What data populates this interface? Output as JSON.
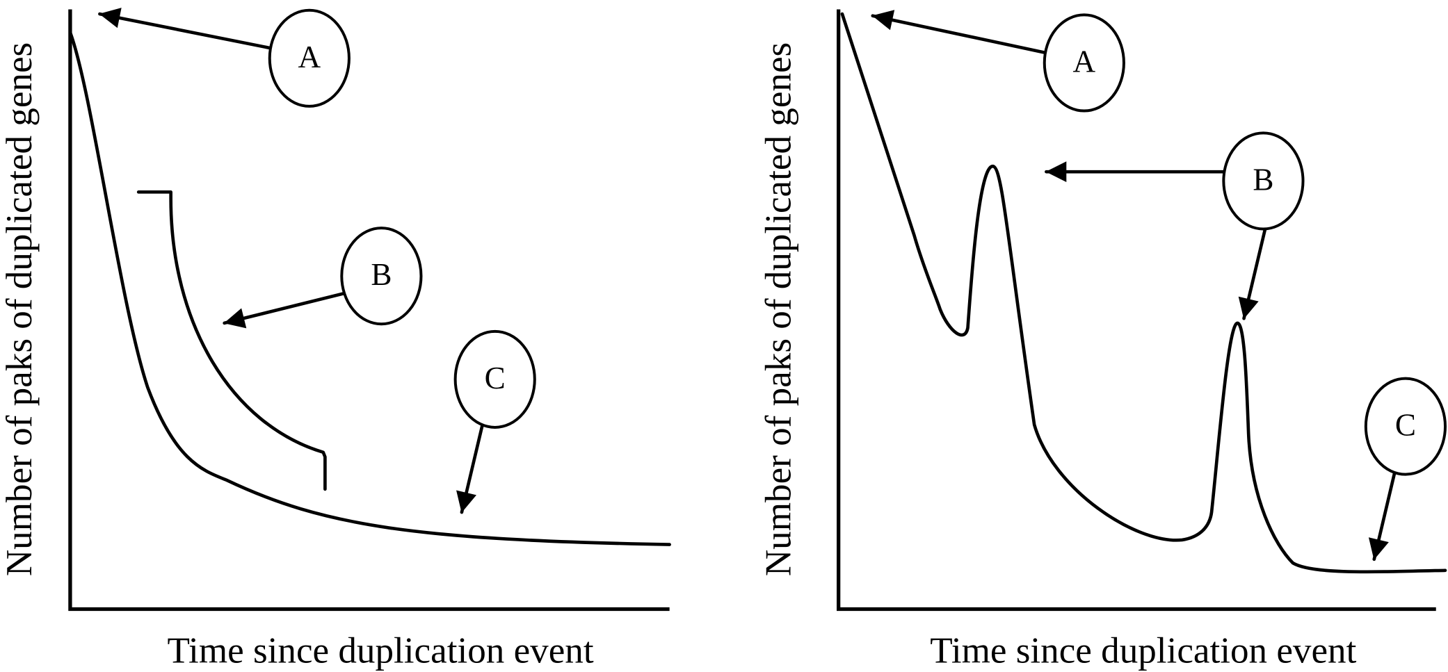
{
  "panels": [
    {
      "y_axis_label": "Number of paks of duplicated genes",
      "x_axis_label": "Time since duplication event",
      "callouts": [
        "A",
        "B",
        "C"
      ]
    },
    {
      "y_axis_label": "Number of paks of duplicated genes",
      "x_axis_label": "Time since duplication event",
      "callouts": [
        "A",
        "B",
        "C"
      ]
    }
  ]
}
